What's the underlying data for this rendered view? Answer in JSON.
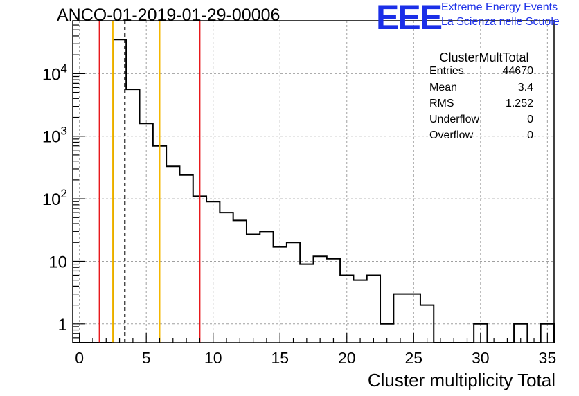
{
  "header": {
    "run_title": "ANCO-01-2019-01-29-00006",
    "logo_text": "EEE",
    "logo_line1": "Extreme Energy Events",
    "logo_line2": "La Scienza nelle Scuole"
  },
  "stats_box": {
    "title": "ClusterMultTotal",
    "rows": [
      {
        "key": "Entries",
        "value": "44670"
      },
      {
        "key": "Mean",
        "value": "3.4"
      },
      {
        "key": "RMS",
        "value": "1.252"
      },
      {
        "key": "Underflow",
        "value": "0"
      },
      {
        "key": "Overflow",
        "value": "0"
      }
    ]
  },
  "colors": {
    "red_line": "#e8191c",
    "yellow_line": "#f5b800",
    "histogram": "#000000",
    "grid": "#a0a0a0"
  },
  "chart_data": {
    "type": "histogram",
    "title": "ANCO-01-2019-01-29-00006",
    "xlabel": "Cluster multiplicity Total",
    "ylabel": "",
    "yscale": "log",
    "xlim": [
      -0.5,
      35.5
    ],
    "ylim": [
      0.5,
      70000
    ],
    "grid": true,
    "legend": "none",
    "bin_edges_start": -0.5,
    "bin_width": 1,
    "counts": [
      0,
      0,
      0,
      35000,
      5600,
      1600,
      700,
      330,
      240,
      110,
      90,
      60,
      45,
      27,
      30,
      17,
      20,
      9,
      12,
      11,
      6,
      5,
      6,
      1,
      3,
      3,
      2,
      0,
      0,
      0,
      1,
      0,
      0,
      1,
      0,
      1
    ],
    "xticks": [
      0,
      5,
      10,
      15,
      20,
      25,
      30,
      35
    ],
    "xtick_labels": [
      "0",
      "5",
      "10",
      "15",
      "20",
      "25",
      "30",
      "35"
    ],
    "yticks": [
      1,
      10,
      100,
      1000,
      10000
    ],
    "ytick_labels": [
      {
        "base": "1",
        "exp": ""
      },
      {
        "base": "10",
        "exp": ""
      },
      {
        "base": "10",
        "exp": "2"
      },
      {
        "base": "10",
        "exp": "3"
      },
      {
        "base": "10",
        "exp": "4"
      }
    ],
    "vertical_lines": [
      {
        "x": 1.5,
        "color": "red",
        "style": "solid"
      },
      {
        "x": 2.5,
        "color": "yellow",
        "style": "solid"
      },
      {
        "x": 3.4,
        "color": "black",
        "style": "dashed"
      },
      {
        "x": 6.0,
        "color": "yellow",
        "style": "solid"
      },
      {
        "x": 9.0,
        "color": "red",
        "style": "solid"
      }
    ]
  }
}
